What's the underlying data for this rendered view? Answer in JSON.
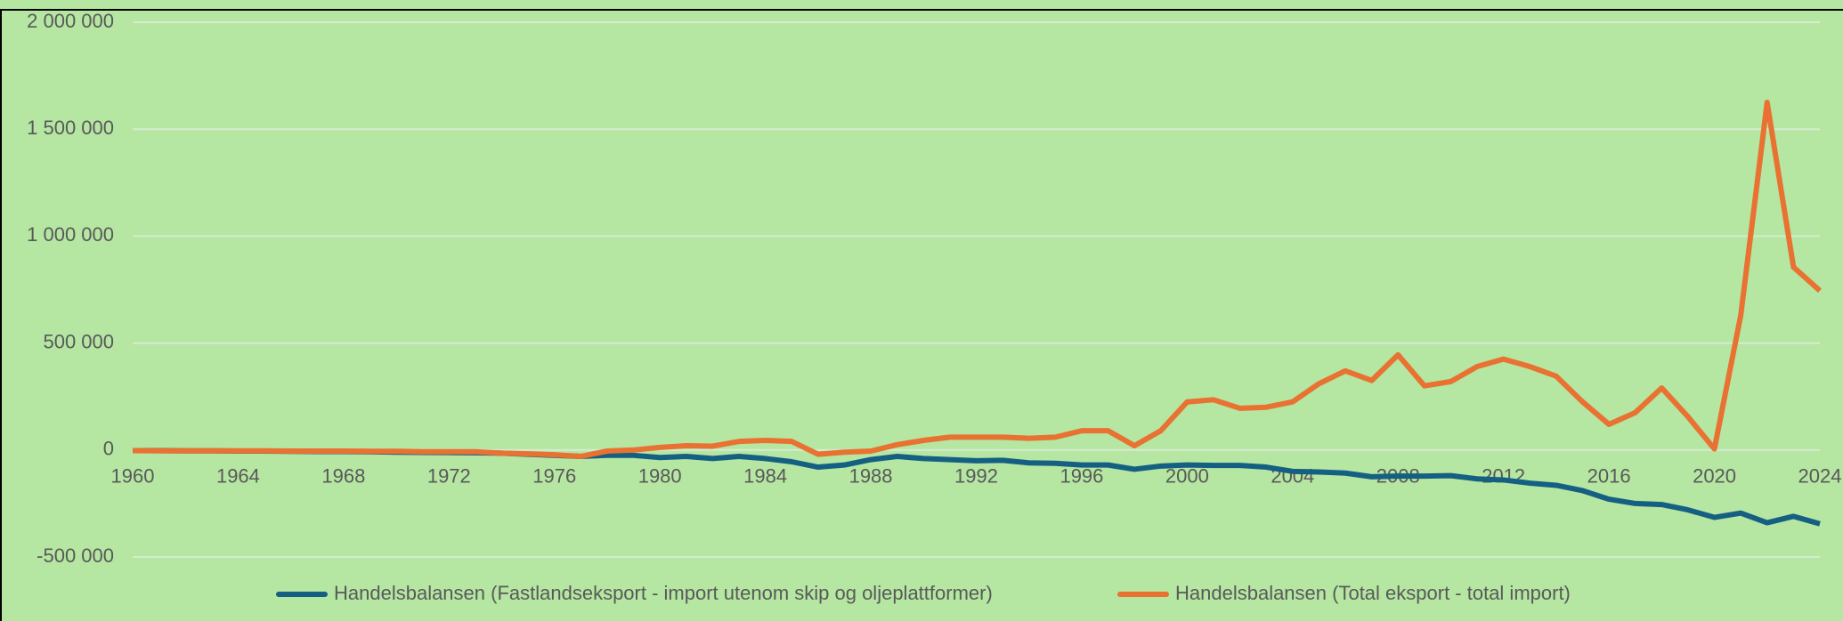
{
  "chart_data": {
    "type": "line",
    "x": [
      1960,
      1961,
      1962,
      1963,
      1964,
      1965,
      1966,
      1967,
      1968,
      1969,
      1970,
      1971,
      1972,
      1973,
      1974,
      1975,
      1976,
      1977,
      1978,
      1979,
      1980,
      1981,
      1982,
      1983,
      1984,
      1985,
      1986,
      1987,
      1988,
      1989,
      1990,
      1991,
      1992,
      1993,
      1994,
      1995,
      1996,
      1997,
      1998,
      1999,
      2000,
      2001,
      2002,
      2003,
      2004,
      2005,
      2006,
      2007,
      2008,
      2009,
      2010,
      2011,
      2012,
      2013,
      2014,
      2015,
      2016,
      2017,
      2018,
      2019,
      2020,
      2021,
      2022,
      2023,
      2024
    ],
    "series": [
      {
        "name": "Handelsbalansen (Fastlandseksport - import utenom skip og oljeplattformer)",
        "color": "#156082",
        "values": [
          -3000,
          -3000,
          -4000,
          -4000,
          -5000,
          -5000,
          -6000,
          -7000,
          -7000,
          -8000,
          -10000,
          -11000,
          -12000,
          -13000,
          -15000,
          -20000,
          -25000,
          -30000,
          -25000,
          -25000,
          -35000,
          -30000,
          -40000,
          -30000,
          -40000,
          -55000,
          -80000,
          -70000,
          -45000,
          -30000,
          -40000,
          -45000,
          -50000,
          -48000,
          -60000,
          -62000,
          -70000,
          -70000,
          -90000,
          -75000,
          -70000,
          -72000,
          -72000,
          -80000,
          -100000,
          -103000,
          -108000,
          -125000,
          -122000,
          -122000,
          -120000,
          -135000,
          -140000,
          -155000,
          -165000,
          -190000,
          -230000,
          -250000,
          -255000,
          -280000,
          -315000,
          -295000,
          -340000,
          -310000,
          -345000
        ]
      },
      {
        "name": "Handelsbalansen (Total eksport - total import)",
        "color": "#e97132",
        "values": [
          -3000,
          -4000,
          -4000,
          -4000,
          -4000,
          -4000,
          -5000,
          -5000,
          -5000,
          -6000,
          -6000,
          -8000,
          -8000,
          -8000,
          -15000,
          -18000,
          -22000,
          -30000,
          -5000,
          0,
          12000,
          20000,
          18000,
          40000,
          45000,
          40000,
          -20000,
          -10000,
          -5000,
          25000,
          45000,
          60000,
          60000,
          60000,
          55000,
          60000,
          90000,
          90000,
          20000,
          90000,
          225000,
          235000,
          195000,
          200000,
          225000,
          310000,
          370000,
          325000,
          445000,
          300000,
          320000,
          390000,
          425000,
          390000,
          345000,
          225000,
          120000,
          175000,
          290000,
          155000,
          5000,
          630000,
          1625000,
          855000,
          745000
        ]
      }
    ],
    "xlim": [
      1960,
      2024
    ],
    "xticks": [
      1960,
      1964,
      1968,
      1972,
      1976,
      1980,
      1984,
      1988,
      1992,
      1996,
      2000,
      2004,
      2008,
      2012,
      2016,
      2020,
      2024
    ],
    "ylim": [
      -500000,
      2000000
    ],
    "yticks": [
      {
        "value": -500000,
        "label": "-500 000"
      },
      0,
      {
        "value": 500000,
        "label": "500 000"
      },
      {
        "value": 1000000,
        "label": "1 000 000"
      },
      {
        "value": 1500000,
        "label": "1 500 000"
      },
      {
        "value": 2000000,
        "label": "2 000 000"
      }
    ],
    "grid": true,
    "legend": "bottom"
  }
}
